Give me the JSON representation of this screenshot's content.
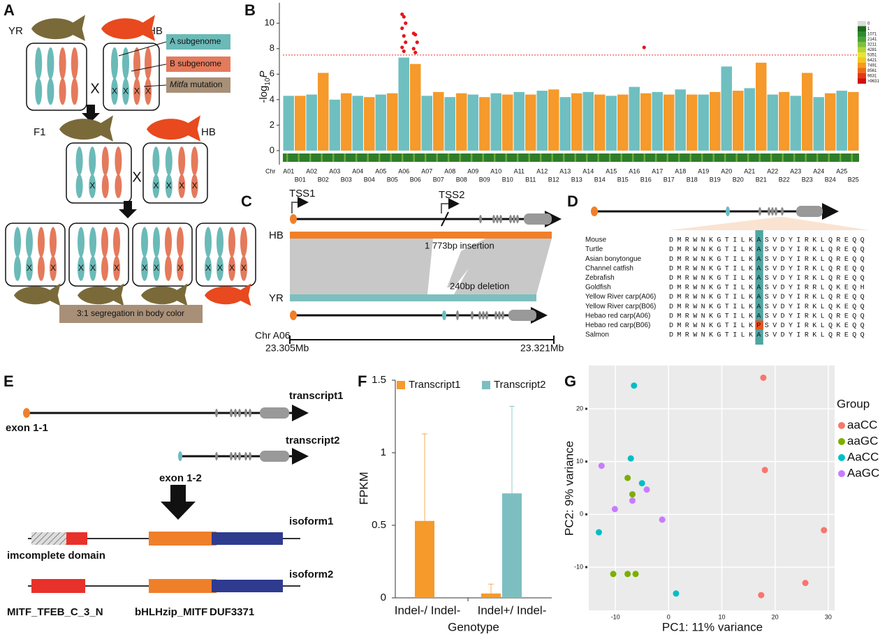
{
  "chart_data": [
    {
      "type": "manhattan",
      "panel_label": "B",
      "ylabel": {
        "prefix": "-log",
        "base": "10",
        "var": "P"
      },
      "xlabel": "Chr",
      "chromosomes": [
        "A01",
        "B01",
        "A02",
        "B02",
        "A03",
        "B03",
        "A04",
        "B04",
        "A05",
        "B05",
        "A06",
        "B06",
        "A07",
        "B07",
        "A08",
        "B08",
        "A09",
        "B09",
        "A10",
        "B10",
        "A11",
        "B11",
        "A12",
        "B12",
        "A13",
        "B13",
        "A14",
        "B14",
        "A15",
        "B15",
        "A16",
        "B16",
        "A17",
        "B17",
        "A18",
        "B18",
        "A19",
        "B19",
        "A20",
        "B20",
        "A21",
        "B21",
        "A22",
        "B22",
        "A23",
        "B23",
        "A24",
        "B24",
        "A25",
        "B25"
      ],
      "peaks": [
        4.3,
        4.3,
        4.4,
        6.1,
        4.0,
        4.5,
        4.3,
        4.2,
        4.4,
        4.5,
        7.3,
        6.8,
        4.3,
        4.6,
        4.2,
        4.5,
        4.4,
        4.2,
        4.5,
        4.4,
        4.6,
        4.4,
        4.7,
        4.8,
        4.2,
        4.5,
        4.6,
        4.4,
        4.3,
        4.4,
        5.0,
        4.5,
        4.6,
        4.4,
        4.8,
        4.4,
        4.4,
        4.6,
        6.6,
        4.7,
        4.9,
        6.9,
        4.4,
        4.6,
        4.3,
        6.1,
        4.2,
        4.5,
        4.7,
        4.6
      ],
      "colors": [
        "#6fbfc0",
        "#f59a2b"
      ],
      "highlight": [
        10,
        11
      ],
      "highlight_color": "#e8312a",
      "significant": [
        {
          "chromosome": 10,
          "values": [
            10.7,
            10.5,
            10.0,
            9.6,
            9.0,
            8.5,
            8.1,
            7.8
          ]
        },
        {
          "chromosome": 11,
          "values": [
            9.2,
            9.1,
            8.5,
            8.0,
            7.7
          ]
        },
        {
          "chromosome": 31,
          "values": [
            8.1
          ]
        }
      ],
      "threshold": 7.5,
      "ylim": [
        -1.1,
        11.6
      ],
      "yticks": [
        0,
        2,
        4,
        6,
        8,
        10
      ],
      "density": {
        "labels": [
          "0",
          "1",
          "1071",
          "2141",
          "3211",
          "4281",
          "5351",
          "6421",
          "7491",
          "8561",
          "9631",
          ">9631"
        ],
        "colors": [
          "#dcdcdc",
          "#1a6b1a",
          "#2e8b2e",
          "#4aa33a",
          "#7fbf3f",
          "#b5d53a",
          "#e6e633",
          "#f5c623",
          "#f59a1e",
          "#ee6a1a",
          "#e03a1a",
          "#d01010"
        ]
      }
    },
    {
      "type": "bar",
      "panel_label": "F",
      "categories": [
        "Indel-/ Indel-",
        "Indel+/ Indel-"
      ],
      "series": [
        {
          "name": "Transcript1",
          "color": "#f59a2b",
          "values": [
            0.53,
            0.03
          ],
          "errors": [
            0.6,
            0.065
          ]
        },
        {
          "name": "Transcript2",
          "color": "#7dbfc0",
          "values": [
            0,
            0.72
          ],
          "errors": [
            null,
            0.6
          ]
        }
      ],
      "ylabel": "FPKM",
      "xlabel": "Genotype",
      "ylim": [
        0,
        1.5
      ],
      "yticks": [
        0,
        0.5,
        1,
        1.5
      ],
      "legend": "top"
    },
    {
      "type": "scatter",
      "panel_label": "G",
      "xlabel": "PC1: 11% variance",
      "ylabel": "PC2: 9% variance",
      "legend_title": "Group",
      "xlim": [
        -15,
        31.2
      ],
      "ylim": [
        -18.2,
        28.2
      ],
      "xticks": [
        -10,
        0,
        10,
        20,
        30
      ],
      "yticks": [
        -10,
        0,
        10,
        20
      ],
      "grid": true,
      "series": [
        {
          "name": "aaCC",
          "color": "#f8766d",
          "x": [
            17.8,
            18.1,
            29.2,
            25.7,
            17.4
          ],
          "values": [
            25.9,
            8.4,
            -3.0,
            -13.0,
            -15.3
          ]
        },
        {
          "name": "aaGC",
          "color": "#7cae00",
          "x": [
            -7.7,
            -6.8,
            -10.4,
            -7.7,
            -6.2
          ],
          "values": [
            6.9,
            3.8,
            -11.3,
            -11.3,
            -11.3
          ]
        },
        {
          "name": "AaCC",
          "color": "#00bfc4",
          "x": [
            -6.5,
            -7.1,
            -5.0,
            -13.1,
            1.4
          ],
          "values": [
            24.4,
            10.6,
            5.9,
            -3.4,
            -15.0
          ]
        },
        {
          "name": "AaGC",
          "color": "#c77cff",
          "x": [
            -12.6,
            -4.1,
            -6.8,
            -10.1,
            -1.2
          ],
          "values": [
            9.2,
            4.7,
            2.6,
            1.0,
            -1.0
          ]
        }
      ]
    }
  ],
  "panels": {
    "a": {
      "label": "A",
      "yr": "YR",
      "hb": "HB",
      "legend": [
        {
          "text": "A subgenome"
        },
        {
          "text": "B subgenome"
        },
        {
          "gene": "Mitfa",
          "text": "mutation"
        }
      ],
      "cross": "X",
      "mark": "X",
      "f1": "F1",
      "result": "3:1  segregation in body color"
    },
    "c": {
      "label": "C",
      "tss1": "TSS1",
      "tss2": "TSS2",
      "hb": "HB",
      "insertion": "1 773bp insertion",
      "deletion": "240bp deletion",
      "yr": "YR",
      "chr": "Chr A06",
      "start": "23.305Mb",
      "end": "23.321Mb"
    },
    "d": {
      "label": "D",
      "species": [
        "Mouse",
        "Turtle",
        "Asian bonytongue",
        "Channel catfish",
        "Zebrafish",
        "Goldfish",
        "Yellow River carp(A06)",
        "Yellow River carp(B06)",
        "Hebao red carp(A06)",
        "Hebao red carp(B06)",
        "Salmon"
      ],
      "sequences": [
        "DMRWNKGTILKASVDYIRKLQREQQ",
        "DMRWNKGTILKASVDYIRKLQREQQ",
        "DMRWNKGTILKASVDYIRKLQREQQ",
        "DMRWNKGTILKASVDYIRKLQREQQ",
        "DMRWNKGTILKASVDYIRKLQREQQ",
        "DMRWNKGTILKASVDYIRRLQKEQH",
        "DMRWNKGTILKASVDYIRKLQREQQ",
        "DMRWNKGTILKASVDYIRKLQKEQQ",
        "DMRWNKGTILKASVDYIRKLQREQQ",
        "DMRWNKGTILKPSVDYIRKLQKEQQ",
        "DMRWNKGTILKASVDYIRKLQREQQ"
      ],
      "highlight_column": 11,
      "highlight_row": 9
    },
    "e": {
      "label": "E",
      "transcript1": "transcript1",
      "exon1": "exon 1-1",
      "transcript2": "transcript2",
      "exon2": "exon 1-2",
      "isoform1": "isoform1",
      "incomplete": "imcomplete domain",
      "isoform2": "isoform2",
      "domains": [
        "MITF_TFEB_C_3_N",
        "bHLHzip_MITF",
        "DUF3371"
      ]
    }
  }
}
